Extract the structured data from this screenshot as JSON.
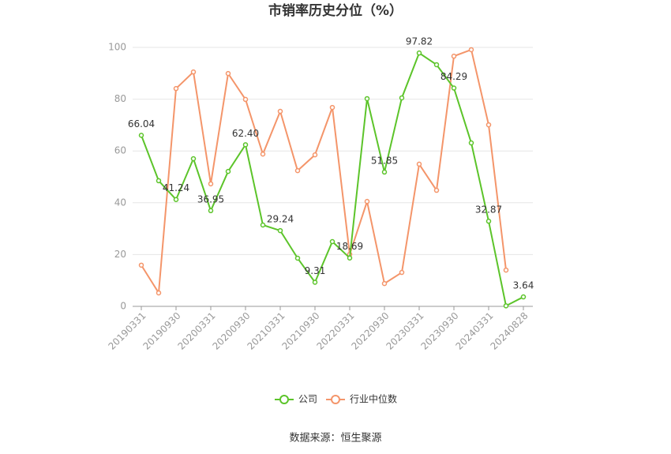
{
  "chart_data": {
    "type": "line",
    "title": "市销率历史分位（%）",
    "source": "数据来源：恒生聚源",
    "categories": [
      "20190331",
      null,
      "20190930",
      null,
      "20200331",
      null,
      "20200930",
      null,
      "20210331",
      null,
      "20210930",
      null,
      "20220331",
      null,
      "20220930",
      null,
      "20230331",
      null,
      "20230930",
      null,
      "20240331",
      null,
      "20240828"
    ],
    "series": [
      {
        "name": "公司",
        "color": "#5cc42a",
        "values": [
          66.04,
          48.5,
          41.24,
          57.0,
          36.95,
          52.1,
          62.4,
          31.4,
          29.24,
          18.6,
          9.31,
          25.0,
          18.69,
          80.2,
          51.85,
          80.5,
          97.82,
          93.3,
          84.29,
          63.1,
          32.87,
          0.2,
          3.64
        ],
        "value_labels": [
          "66.04",
          null,
          "41.24",
          null,
          "36.95",
          null,
          "62.40",
          null,
          "29.24",
          null,
          "9.31",
          null,
          "18.69",
          null,
          "51.85",
          null,
          "97.82",
          null,
          "84.29",
          null,
          "32.87",
          null,
          "3.64"
        ]
      },
      {
        "name": "行业中位数",
        "color": "#f4956a",
        "values": [
          15.9,
          5.2,
          84.1,
          90.5,
          47.3,
          89.9,
          79.9,
          58.8,
          75.3,
          52.4,
          58.5,
          76.8,
          20.1,
          40.5,
          8.8,
          13.1,
          54.9,
          44.8,
          96.6,
          99.1,
          70.1,
          14.0,
          null
        ]
      }
    ],
    "ylim": [
      0,
      100
    ],
    "yticks": [
      0,
      20,
      40,
      60,
      80,
      100
    ],
    "grid": true,
    "legend": "bottom"
  }
}
